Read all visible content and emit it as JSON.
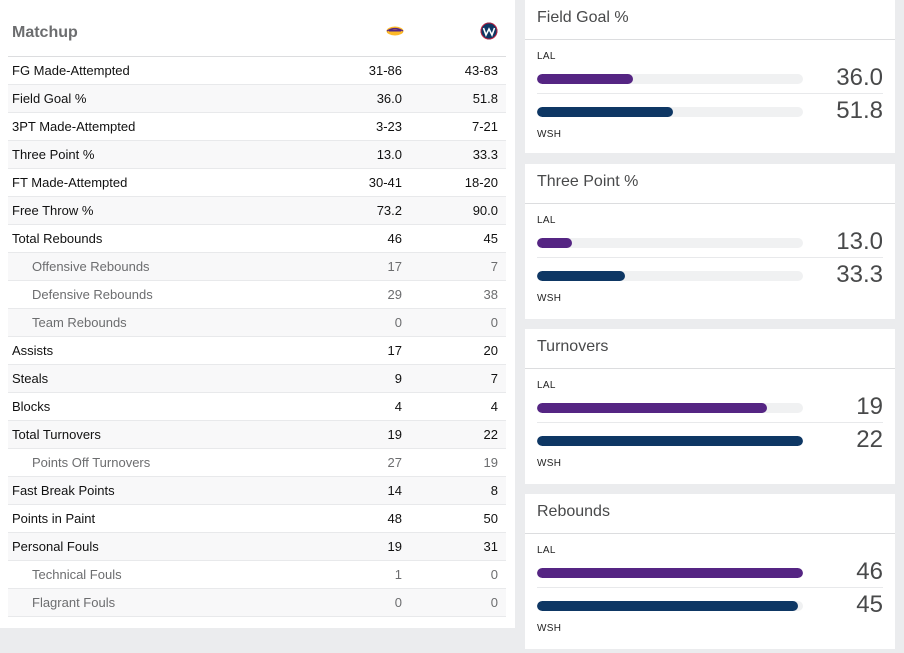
{
  "matchup": {
    "title": "Matchup",
    "teams": [
      {
        "abbr": "LAL",
        "logo": "lakers-logo",
        "color": "#552583",
        "accent": "#fdb927"
      },
      {
        "abbr": "WSH",
        "logo": "wizards-logo",
        "color": "#0e3764",
        "accent": "#e31837"
      }
    ],
    "rows": [
      {
        "label": "FG Made-Attempted",
        "lal": "31-86",
        "wsh": "43-83",
        "sub": false
      },
      {
        "label": "Field Goal %",
        "lal": "36.0",
        "wsh": "51.8",
        "sub": false
      },
      {
        "label": "3PT Made-Attempted",
        "lal": "3-23",
        "wsh": "7-21",
        "sub": false
      },
      {
        "label": "Three Point %",
        "lal": "13.0",
        "wsh": "33.3",
        "sub": false
      },
      {
        "label": "FT Made-Attempted",
        "lal": "30-41",
        "wsh": "18-20",
        "sub": false
      },
      {
        "label": "Free Throw %",
        "lal": "73.2",
        "wsh": "90.0",
        "sub": false
      },
      {
        "label": "Total Rebounds",
        "lal": "46",
        "wsh": "45",
        "sub": false
      },
      {
        "label": "Offensive Rebounds",
        "lal": "17",
        "wsh": "7",
        "sub": true
      },
      {
        "label": "Defensive Rebounds",
        "lal": "29",
        "wsh": "38",
        "sub": true
      },
      {
        "label": "Team Rebounds",
        "lal": "0",
        "wsh": "0",
        "sub": true
      },
      {
        "label": "Assists",
        "lal": "17",
        "wsh": "20",
        "sub": false
      },
      {
        "label": "Steals",
        "lal": "9",
        "wsh": "7",
        "sub": false
      },
      {
        "label": "Blocks",
        "lal": "4",
        "wsh": "4",
        "sub": false
      },
      {
        "label": "Total Turnovers",
        "lal": "19",
        "wsh": "22",
        "sub": false
      },
      {
        "label": "Points Off Turnovers",
        "lal": "27",
        "wsh": "19",
        "sub": true
      },
      {
        "label": "Fast Break Points",
        "lal": "14",
        "wsh": "8",
        "sub": false
      },
      {
        "label": "Points in Paint",
        "lal": "48",
        "wsh": "50",
        "sub": false
      },
      {
        "label": "Personal Fouls",
        "lal": "19",
        "wsh": "31",
        "sub": false
      },
      {
        "label": "Technical Fouls",
        "lal": "1",
        "wsh": "0",
        "sub": true
      },
      {
        "label": "Flagrant Fouls",
        "lal": "0",
        "wsh": "0",
        "sub": true
      }
    ]
  },
  "comparisons": [
    {
      "title": "Field Goal %",
      "lal_label": "LAL",
      "wsh_label": "WSH",
      "lal_value": "36.0",
      "wsh_value": "51.8",
      "lal_fill": 0.36,
      "wsh_fill": 0.51
    },
    {
      "title": "Three Point %",
      "lal_label": "LAL",
      "wsh_label": "WSH",
      "lal_value": "13.0",
      "wsh_value": "33.3",
      "lal_fill": 0.13,
      "wsh_fill": 0.33
    },
    {
      "title": "Turnovers",
      "lal_label": "LAL",
      "wsh_label": "WSH",
      "lal_value": "19",
      "wsh_value": "22",
      "lal_fill": 0.865,
      "wsh_fill": 1.0
    },
    {
      "title": "Rebounds",
      "lal_label": "LAL",
      "wsh_label": "WSH",
      "lal_value": "46",
      "wsh_value": "45",
      "lal_fill": 1.0,
      "wsh_fill": 0.98
    }
  ]
}
